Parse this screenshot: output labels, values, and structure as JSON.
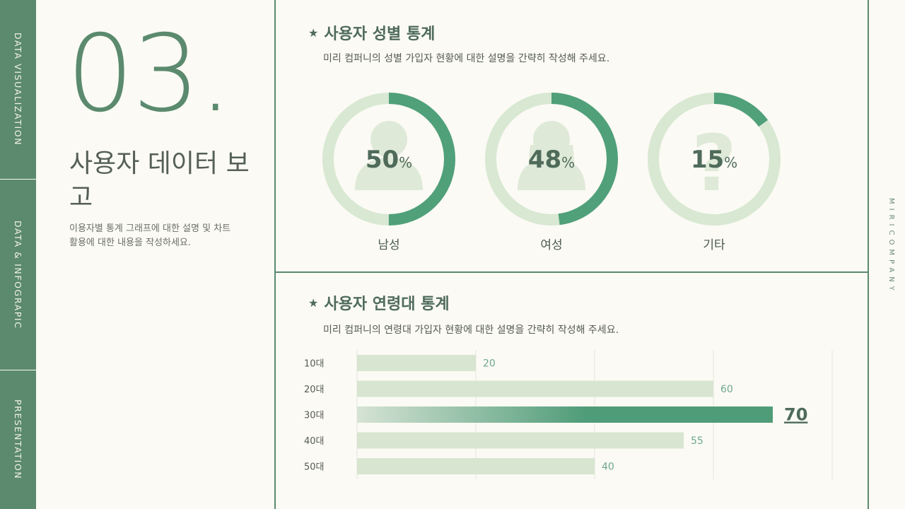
{
  "side_tabs": [
    "DATA VISUALIZATION",
    "DATA & INFOGRAPIC",
    "PRESENTATION"
  ],
  "big_number": "03",
  "big_number_dot": ".",
  "main_title": "사용자 데이터 보고",
  "main_desc": "이용자별 통계 그래프에 대한 설명 및 차트 활용에 대한 내용을 작성하세요.",
  "brand": "MIRICOMPANY",
  "gender_section": {
    "title": "사용자 성별 통계",
    "star": "★",
    "desc": "미리 컴퍼니의 성별 가입자 현황에 대한 설명을 간략히 작성해 주세요.",
    "items": [
      {
        "label": "남성",
        "value": "50",
        "pct": "%",
        "icon": "male-person-icon"
      },
      {
        "label": "여성",
        "value": "48",
        "pct": "%",
        "icon": "female-person-icon"
      },
      {
        "label": "기타",
        "value": "15",
        "pct": "%",
        "icon": "question-mark-icon"
      }
    ]
  },
  "age_section": {
    "title": "사용자 연령대 통계",
    "star": "★",
    "desc": "미리 컴퍼니의 연령대 가입자 현황에 대한 설명을 간략히 작성해 주세요."
  },
  "colors": {
    "accent": "#5b8a6e",
    "bar_light": "#d8e5d0",
    "bar_highlight": "#4f9c78",
    "ring_light": "#d8e8d2",
    "ring_dark": "#50a07a"
  },
  "chart_data": [
    {
      "type": "pie",
      "categories": [
        "남성",
        "여성",
        "기타"
      ],
      "values": [
        50,
        48,
        15
      ],
      "value_suffix": "%"
    },
    {
      "type": "bar",
      "orientation": "horizontal",
      "categories": [
        "10대",
        "20대",
        "30대",
        "40대",
        "50대"
      ],
      "values": [
        20,
        60,
        70,
        55,
        40
      ],
      "highlight": "30대",
      "xlim": [
        0,
        80
      ],
      "grid": true
    }
  ]
}
